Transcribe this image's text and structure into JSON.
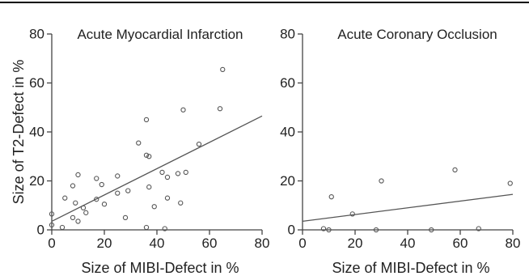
{
  "chart_data": [
    {
      "type": "scatter",
      "title": "Acute Myocardial Infarction",
      "xlabel": "Size of MIBI-Defect in %",
      "ylabel": "Size of T2-Defect in %",
      "xlim": [
        0,
        80
      ],
      "ylim": [
        0,
        80
      ],
      "xticks": [
        "0",
        "20",
        "40",
        "60",
        "80"
      ],
      "yticks": [
        "0",
        "20",
        "40",
        "60",
        "80"
      ],
      "grid": false,
      "points": [
        [
          0,
          2
        ],
        [
          0,
          6.5
        ],
        [
          4,
          1
        ],
        [
          5,
          13
        ],
        [
          8,
          5
        ],
        [
          8,
          18
        ],
        [
          9,
          11
        ],
        [
          10,
          22.5
        ],
        [
          10,
          3.5
        ],
        [
          12,
          9
        ],
        [
          13,
          7
        ],
        [
          17,
          21
        ],
        [
          17,
          12.5
        ],
        [
          19,
          18.5
        ],
        [
          20,
          10.5
        ],
        [
          25,
          15
        ],
        [
          25,
          22
        ],
        [
          28,
          5
        ],
        [
          29,
          16
        ],
        [
          33,
          35.5
        ],
        [
          36,
          45
        ],
        [
          36,
          30.5
        ],
        [
          37,
          30
        ],
        [
          37,
          17.5
        ],
        [
          36,
          1
        ],
        [
          39,
          9.5
        ],
        [
          42,
          23.5
        ],
        [
          43,
          0.5
        ],
        [
          44,
          13
        ],
        [
          44,
          21.5
        ],
        [
          48,
          23
        ],
        [
          49,
          11
        ],
        [
          50,
          49
        ],
        [
          51,
          23.5
        ],
        [
          56,
          35
        ],
        [
          64,
          49.5
        ],
        [
          65,
          65.5
        ]
      ],
      "regression": [
        [
          0,
          3.5
        ],
        [
          80,
          46.5
        ]
      ]
    },
    {
      "type": "scatter",
      "title": "Acute Coronary Occlusion",
      "xlabel": "Size of MIBI-Defect in %",
      "ylabel": "",
      "xlim": [
        0,
        80
      ],
      "ylim": [
        0,
        80
      ],
      "xticks": [
        "0",
        "20",
        "40",
        "60",
        "80"
      ],
      "yticks": [
        "0",
        "20",
        "40",
        "60",
        "80"
      ],
      "grid": false,
      "points": [
        [
          8,
          0.5
        ],
        [
          10,
          0
        ],
        [
          11,
          13.5
        ],
        [
          19,
          6.5
        ],
        [
          28,
          0
        ],
        [
          30,
          20
        ],
        [
          49,
          0
        ],
        [
          58,
          24.5
        ],
        [
          67,
          0.5
        ],
        [
          79,
          19
        ]
      ],
      "regression": [
        [
          0,
          3.5
        ],
        [
          80,
          14.5
        ]
      ]
    }
  ]
}
